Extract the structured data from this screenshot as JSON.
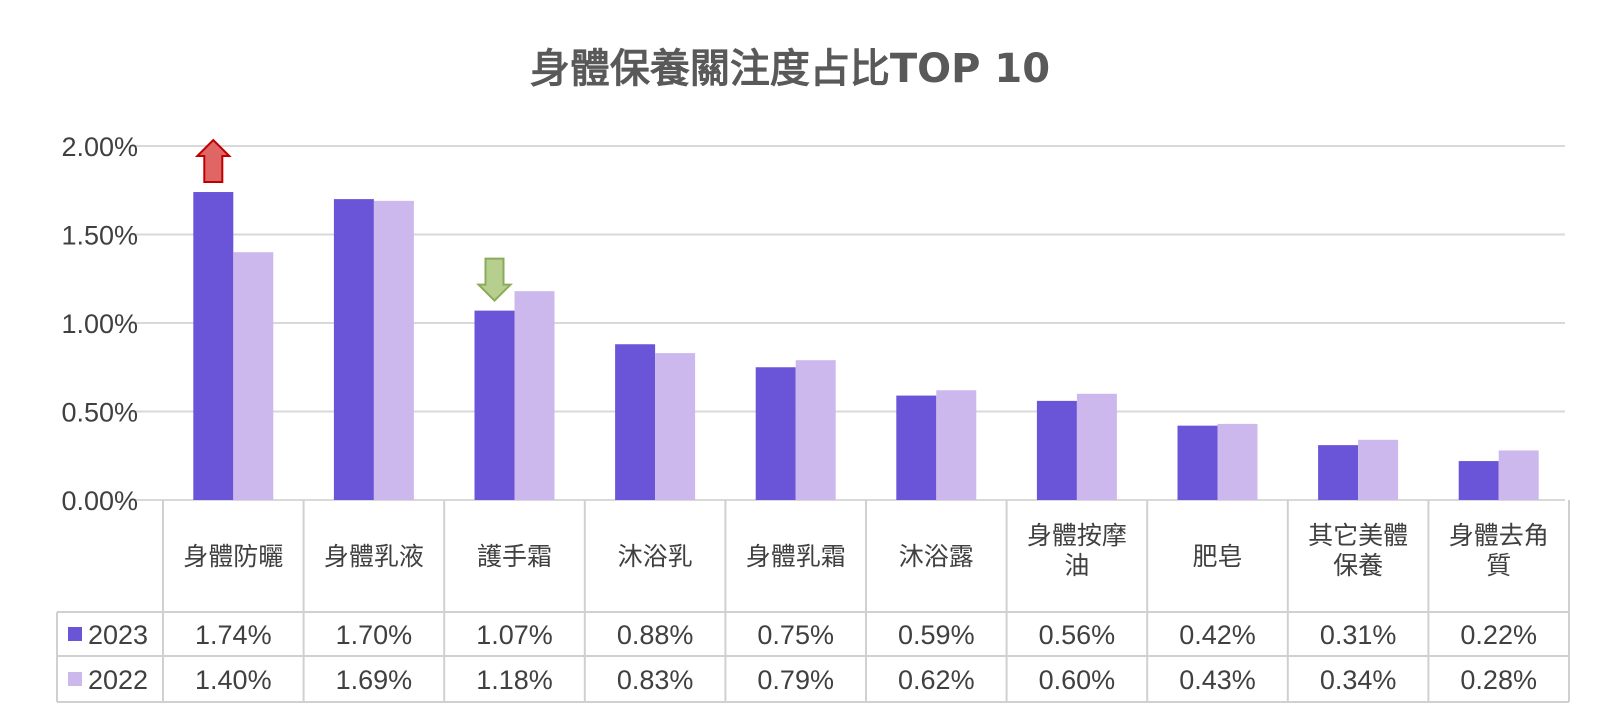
{
  "chart_data": {
    "type": "bar",
    "title": "身體保養關注度占比TOP 10",
    "categories": [
      [
        "身體防曬"
      ],
      [
        "身體乳液"
      ],
      [
        "護手霜"
      ],
      [
        "沐浴乳"
      ],
      [
        "身體乳霜"
      ],
      [
        "沐浴露"
      ],
      [
        "身體按摩",
        "油"
      ],
      [
        "肥皂"
      ],
      [
        "其它美體",
        "保養"
      ],
      [
        "身體去角",
        "質"
      ]
    ],
    "series": [
      {
        "name": "2023",
        "color": "#6a55d8",
        "values": [
          1.74,
          1.7,
          1.07,
          0.88,
          0.75,
          0.59,
          0.56,
          0.42,
          0.31,
          0.22
        ],
        "labels": [
          "1.74%",
          "1.70%",
          "1.07%",
          "0.88%",
          "0.75%",
          "0.59%",
          "0.56%",
          "0.42%",
          "0.31%",
          "0.22%"
        ]
      },
      {
        "name": "2022",
        "color": "#cdb8ee",
        "values": [
          1.4,
          1.69,
          1.18,
          0.83,
          0.79,
          0.62,
          0.6,
          0.43,
          0.34,
          0.28
        ],
        "labels": [
          "1.40%",
          "1.69%",
          "1.18%",
          "0.83%",
          "0.79%",
          "0.62%",
          "0.60%",
          "0.43%",
          "0.34%",
          "0.28%"
        ]
      }
    ],
    "ylim": [
      0,
      2.0
    ],
    "yticks": [
      0,
      0.5,
      1.0,
      1.5,
      2.0
    ],
    "ytick_labels": [
      "0.00%",
      "0.50%",
      "1.00%",
      "1.50%",
      "2.00%"
    ],
    "grid": true,
    "data_table": true,
    "annotations": [
      {
        "type": "arrow-up",
        "category_index": 0,
        "series_index": 0,
        "color": "#e06666"
      },
      {
        "type": "arrow-down",
        "category_index": 2,
        "series_index": 0,
        "color": "#b6cf8e"
      }
    ]
  }
}
